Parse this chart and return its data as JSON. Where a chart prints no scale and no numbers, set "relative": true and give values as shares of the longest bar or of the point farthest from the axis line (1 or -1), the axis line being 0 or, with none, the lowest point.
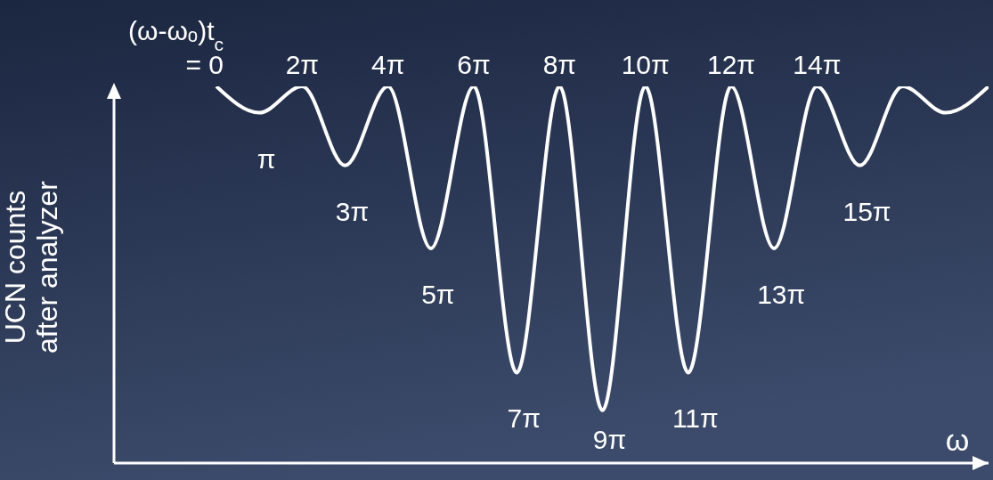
{
  "chart_data": {
    "type": "line",
    "relative": true,
    "xlabel": "ω",
    "ylabel": "UCN counts\nafter analyzer",
    "categories": [
      null,
      null,
      null,
      null,
      null,
      null,
      null,
      null,
      null,
      null,
      null,
      null,
      null,
      null,
      null,
      null,
      null,
      null,
      null
    ],
    "values": [
      1,
      0.93,
      1,
      0.79,
      1,
      0.57,
      1,
      0.24,
      1,
      0.14,
      1,
      0.24,
      1,
      0.57,
      1,
      0.79,
      1,
      0.93,
      1
    ],
    "color": "#ffffff",
    "marker": "none",
    "line_style": "solid",
    "annotations": [
      "(ω-ωₒ)t$_{c}$\n= 0",
      "π",
      "2π",
      "3π",
      "4π",
      "5π",
      "6π",
      "7π",
      "8π",
      "9π",
      "10π",
      "11π",
      "12π",
      "13π",
      "14π",
      "15π"
    ]
  }
}
